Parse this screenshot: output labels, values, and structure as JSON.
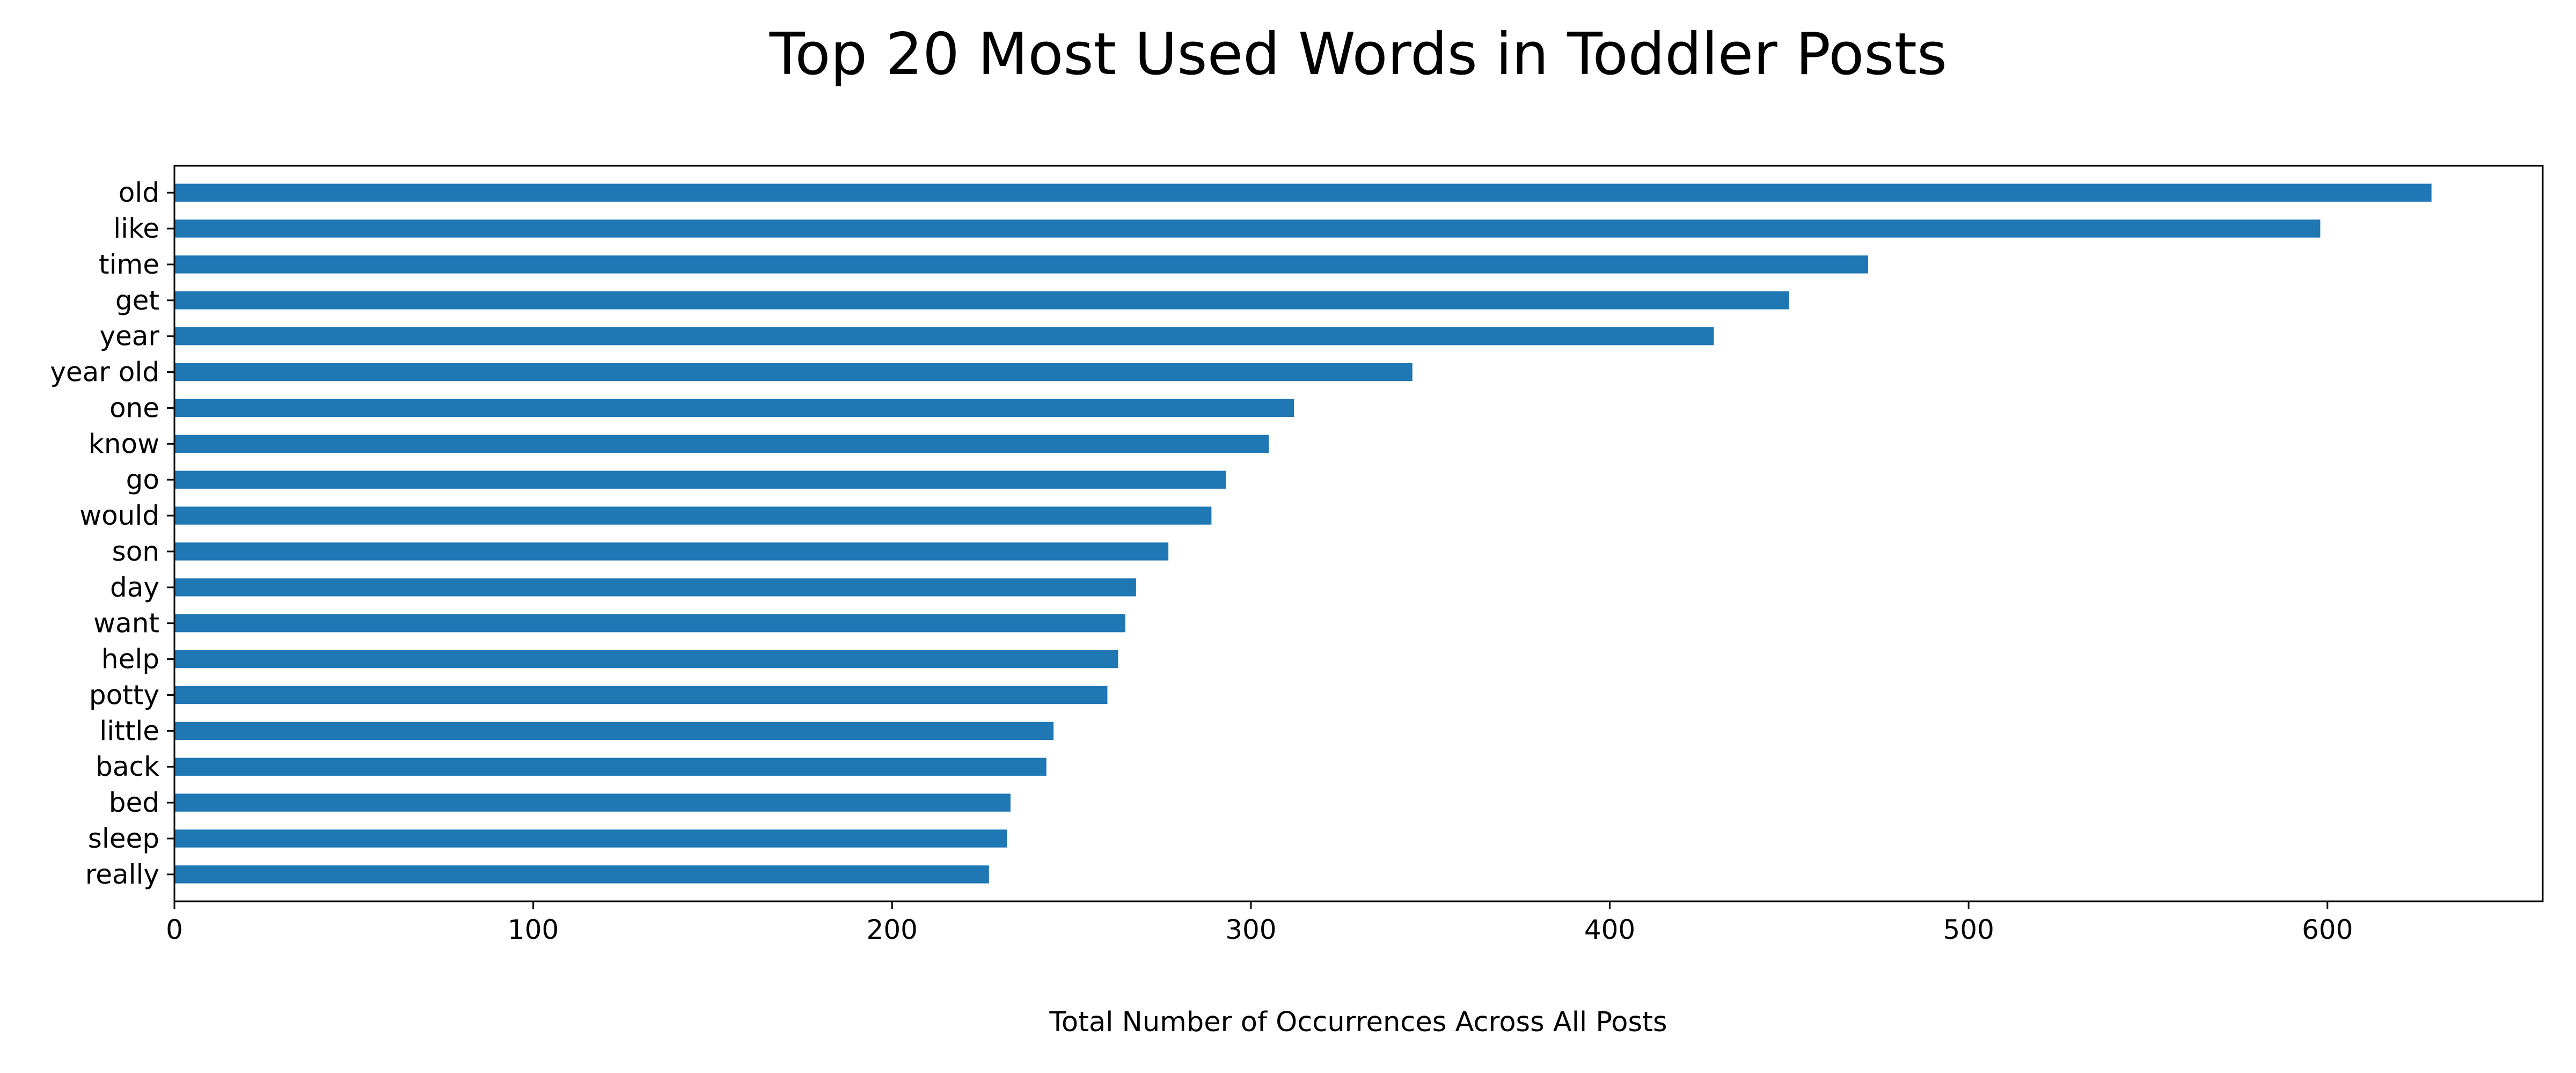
{
  "chart_data": {
    "type": "bar",
    "orientation": "horizontal",
    "title": "Top 20 Most Used Words in Toddler Posts",
    "xlabel": "Total Number of Occurrences Across All Posts",
    "ylabel": "",
    "categories": [
      "old",
      "like",
      "time",
      "get",
      "year",
      "year old",
      "one",
      "know",
      "go",
      "would",
      "son",
      "day",
      "want",
      "help",
      "potty",
      "little",
      "back",
      "bed",
      "sleep",
      "really"
    ],
    "values": [
      629,
      598,
      472,
      450,
      429,
      345,
      312,
      305,
      293,
      289,
      277,
      268,
      265,
      263,
      260,
      245,
      243,
      233,
      232,
      227
    ],
    "xlim": [
      0,
      660
    ],
    "xticks": [
      0,
      100,
      200,
      300,
      400,
      500,
      600
    ],
    "bar_color": "#1f77b4",
    "grid": false,
    "legend": "none"
  }
}
